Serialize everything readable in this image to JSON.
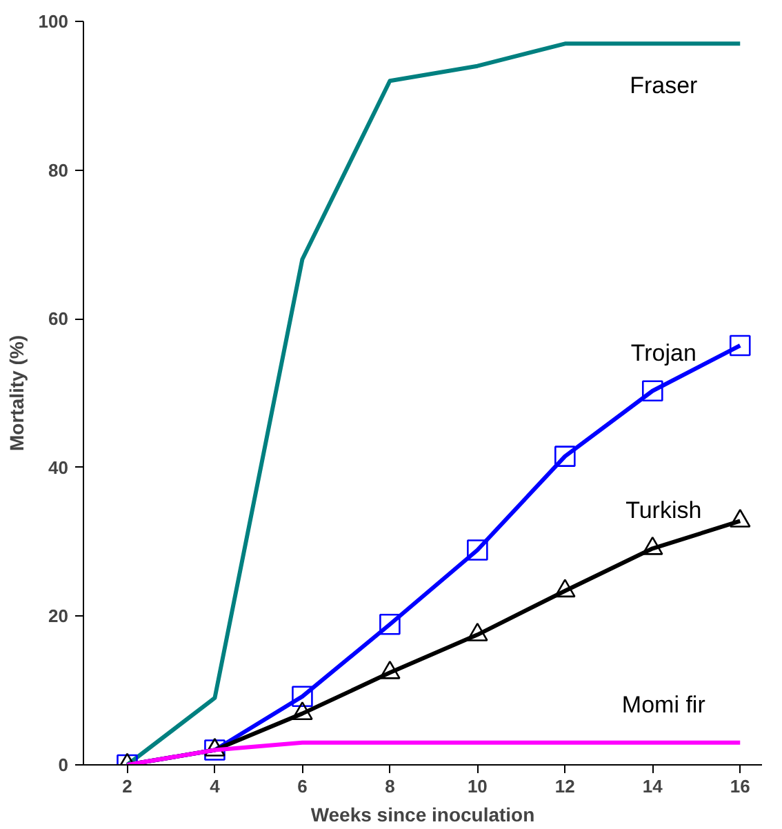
{
  "chart_data": {
    "type": "line",
    "xlabel": "Weeks since inoculation",
    "ylabel": "Mortality (%)",
    "x": [
      2,
      4,
      6,
      8,
      10,
      12,
      14,
      16
    ],
    "xlim": [
      1,
      16.5
    ],
    "xticks": [
      2,
      4,
      6,
      8,
      10,
      12,
      14,
      16
    ],
    "ylim": [
      0,
      100
    ],
    "yticks": [
      0,
      20,
      40,
      60,
      80,
      100
    ],
    "grid": false,
    "series": [
      {
        "name": "Fraser",
        "color": "#008080",
        "marker": "none",
        "values": [
          0,
          9,
          68,
          92,
          94,
          97,
          97,
          97
        ]
      },
      {
        "name": "Trojan",
        "color": "#0000ff",
        "marker": "square",
        "values": [
          0,
          2,
          9.2,
          18.9,
          28.9,
          41.5,
          50.3,
          56.4
        ]
      },
      {
        "name": "Turkish",
        "color": "#000000",
        "marker": "triangle",
        "values": [
          0,
          2,
          6.9,
          12.4,
          17.5,
          23.4,
          29.1,
          32.8
        ]
      },
      {
        "name": "Momi fir",
        "color": "#ff00ff",
        "marker": "none",
        "values": [
          0,
          2,
          3,
          3,
          3,
          3,
          3,
          3
        ]
      }
    ]
  }
}
